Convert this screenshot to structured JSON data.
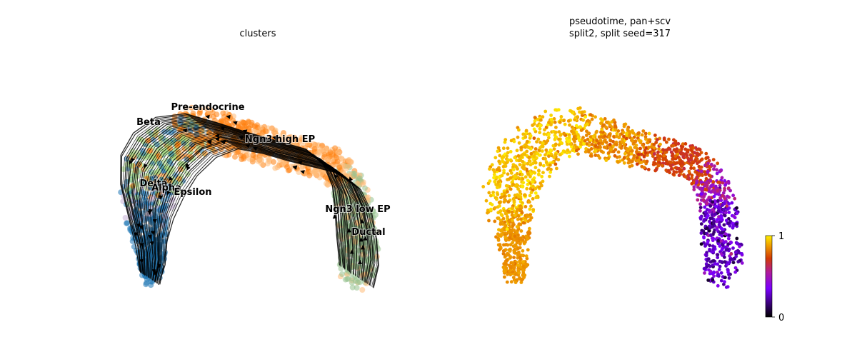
{
  "chart_data": [
    {
      "type": "scatter",
      "title": "clusters",
      "xlabel": "",
      "ylabel": "",
      "grid": false,
      "legend": "on data",
      "overlay": "velocity stream arrows",
      "clusters": [
        {
          "name": "Pre-endocrine",
          "color": "#ff7f0e",
          "center": [
            0.35,
            0.3
          ],
          "label_at": [
            0.36,
            0.23
          ]
        },
        {
          "name": "Beta",
          "color": "#aadc82",
          "center": [
            0.1,
            0.4
          ],
          "label_at": [
            0.13,
            0.28
          ]
        },
        {
          "name": "Ngn3 high EP",
          "color": "#ffbb78",
          "center": [
            0.6,
            0.45
          ],
          "label_at": [
            0.62,
            0.4
          ]
        },
        {
          "name": "Delta",
          "color": "#1f77b4",
          "center": [
            0.18,
            0.62
          ],
          "label_at": [
            0.18,
            0.58
          ]
        },
        {
          "name": "Alpha",
          "color": "#1f77b4",
          "center": [
            0.2,
            0.78
          ],
          "label_at": [
            0.22,
            0.6
          ]
        },
        {
          "name": "Epsilon",
          "color": "#c5b0d5",
          "center": [
            0.28,
            0.58
          ],
          "label_at": [
            0.3,
            0.61
          ]
        },
        {
          "name": "Ngn3 low EP",
          "color": "#98c290",
          "center": [
            0.82,
            0.62
          ],
          "label_at": [
            0.82,
            0.64
          ]
        },
        {
          "name": "Ductal",
          "color": "#98c290",
          "center": [
            0.86,
            0.72
          ],
          "label_at": [
            0.86,
            0.72
          ]
        }
      ]
    },
    {
      "type": "scatter",
      "title_line1": "pseudotime, pan+scv",
      "title_line2": "split2, split seed=317",
      "xlabel": "",
      "ylabel": "",
      "grid": false,
      "colormap": "gnuplot",
      "colorbar": {
        "min": 0,
        "max": 1,
        "ticks": [
          "1",
          "0"
        ],
        "placement": "right"
      }
    }
  ]
}
